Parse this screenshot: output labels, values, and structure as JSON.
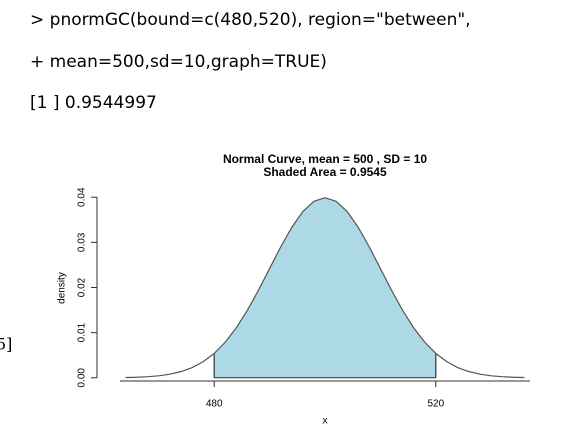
{
  "console": {
    "lines": [
      "> pnormGC(bound=c(480,520), region=\"between\",",
      "+ mean=500,sd=10,graph=TRUE)",
      "[1 ] 0.9544997"
    ],
    "fragment": "5]"
  },
  "chart_data": {
    "type": "line",
    "title": "Normal Curve, mean =  500 , SD =  10",
    "subtitle": "Shaded Area =  0.9545",
    "x_label": "x",
    "y_label": "density",
    "x": [
      464,
      466,
      468,
      470,
      472,
      474,
      476,
      478,
      480,
      482,
      484,
      486,
      488,
      490,
      492,
      494,
      496,
      498,
      500,
      502,
      504,
      506,
      508,
      510,
      512,
      514,
      516,
      518,
      520,
      522,
      524,
      526,
      528,
      530,
      532,
      534,
      536
    ],
    "values": [
      6e-05,
      0.00012,
      0.00024,
      0.00044,
      0.00079,
      0.00136,
      0.00224,
      0.00355,
      0.0054,
      0.0079,
      0.01109,
      0.01497,
      0.01942,
      0.0242,
      0.02897,
      0.03332,
      0.03683,
      0.0391,
      0.03989,
      0.0391,
      0.03683,
      0.03332,
      0.02897,
      0.0242,
      0.01942,
      0.01497,
      0.01109,
      0.0079,
      0.0054,
      0.00355,
      0.00224,
      0.00136,
      0.00079,
      0.00044,
      0.00024,
      0.00012,
      6e-05
    ],
    "color": "#555555",
    "shade_color": "#add8e6",
    "shaded": [
      480,
      520
    ],
    "xlim": [
      463,
      537
    ],
    "xticks": [
      480,
      520
    ],
    "ylim": [
      -0.0016,
      0.0416
    ],
    "yticks": [
      {
        "value": 0,
        "label": "0.00"
      },
      {
        "value": 0.01,
        "label": "0.01"
      },
      {
        "value": 0.02,
        "label": "0.02"
      },
      {
        "value": 0.03,
        "label": "0.03"
      },
      {
        "value": 0.04,
        "label": "0.04"
      }
    ]
  }
}
